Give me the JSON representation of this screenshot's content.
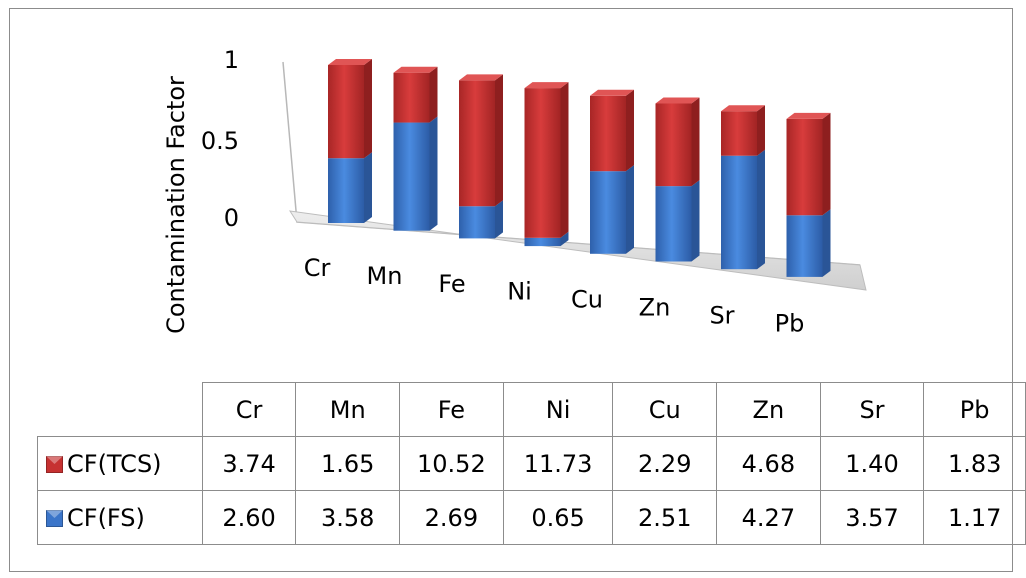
{
  "chart_data": {
    "type": "bar",
    "stacked": "100%",
    "three_d": true,
    "ylabel": "Contamination Factor",
    "yticks": [
      0,
      0.5,
      1
    ],
    "ylim": [
      0,
      1
    ],
    "categories": [
      "Cr",
      "Mn",
      "Fe",
      "Ni",
      "Cu",
      "Zn",
      "Sr",
      "Pb"
    ],
    "series": [
      {
        "name": "CF(FS)",
        "color": "#3b75c9",
        "values": [
          2.6,
          3.58,
          2.69,
          0.65,
          2.51,
          4.27,
          3.57,
          1.17
        ],
        "labels": [
          "2.60",
          "3.58",
          "2.69",
          "0.65",
          "2.51",
          "4.27",
          "3.57",
          "1.17"
        ]
      },
      {
        "name": "CF(TCS)",
        "color": "#c63131",
        "values": [
          3.74,
          1.65,
          10.52,
          11.73,
          2.29,
          4.68,
          1.4,
          1.83
        ],
        "labels": [
          "3.74",
          "1.65",
          "10.52",
          "11.73",
          "2.29",
          "4.68",
          "1.40",
          "1.83"
        ]
      }
    ],
    "table_order": [
      "CF(TCS)",
      "CF(FS)"
    ],
    "legend": "data-table"
  }
}
